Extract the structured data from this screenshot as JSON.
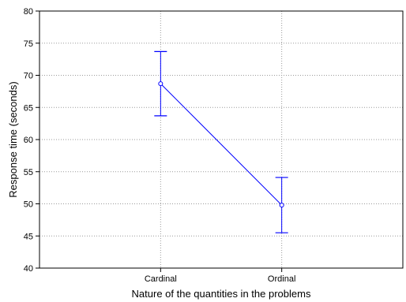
{
  "chart_data": {
    "type": "line",
    "title": "",
    "xlabel": "Nature of the quantities in the problems",
    "ylabel": "Response time (seconds)",
    "categories": [
      "Cardinal",
      "Ordinal"
    ],
    "series": [
      {
        "values": [
          68.7,
          49.8
        ],
        "error_low": [
          63.7,
          45.5
        ],
        "error_high": [
          73.7,
          54.1
        ],
        "color": "#0000ff"
      }
    ],
    "ylim": [
      40,
      80
    ],
    "yticks": [
      "40",
      "45",
      "50",
      "55",
      "60",
      "65",
      "70",
      "75",
      "80"
    ],
    "grid": true,
    "grid_style": "dotted"
  }
}
